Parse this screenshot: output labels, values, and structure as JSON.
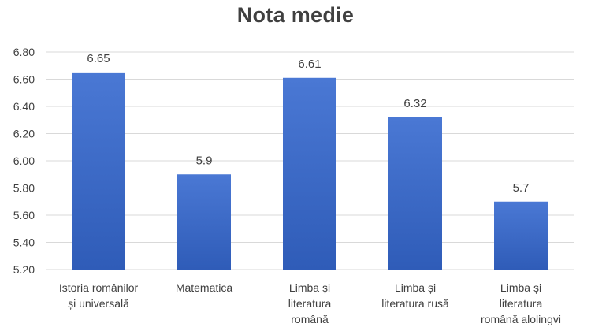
{
  "chart_data": {
    "type": "bar",
    "title": "Nota medie",
    "xlabel": "",
    "ylabel": "",
    "ylim": [
      5.2,
      6.8
    ],
    "yticks": [
      "5.20",
      "5.40",
      "5.60",
      "5.80",
      "6.00",
      "6.20",
      "6.40",
      "6.60",
      "6.80"
    ],
    "grid": true,
    "categories": [
      [
        "Istoria românilor",
        "și universală"
      ],
      [
        "Matematica"
      ],
      [
        "Limba și",
        "literatura",
        "română"
      ],
      [
        "Limba și",
        "literatura rusă"
      ],
      [
        "Limba și",
        "literatura",
        "română alolingvi"
      ]
    ],
    "values": [
      6.65,
      5.9,
      6.61,
      6.32,
      5.7
    ],
    "value_labels": [
      "6.65",
      "5.9",
      "6.61",
      "6.32",
      "5.7"
    ],
    "colors": {
      "bar_top": "#4a78d4",
      "bar_bottom": "#2f5cb8",
      "grid": "#d9d9d9",
      "text": "#404040"
    }
  }
}
